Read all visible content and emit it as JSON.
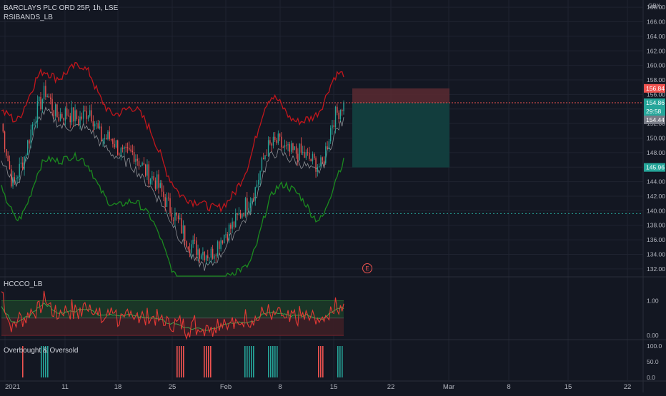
{
  "header": {
    "symbol_line": "BARCLAYS PLC ORD 25P, 1h, LSE",
    "indicator_1": "RSIBANDS_LB",
    "currency": "GBX"
  },
  "panels": {
    "pane2_title": "HCCCO_LB",
    "pane3_title": "Overbought & Oversold",
    "earnings_marker": "E"
  },
  "colors": {
    "background": "#131722",
    "grid": "#1f2330",
    "candle_up": "#26a69a",
    "candle_down": "#ef5350",
    "upper_band": "#c2161c",
    "lower_band": "#1b8a1f",
    "mid_line": "#8d8f94",
    "stop_zone": "#5a2a31",
    "target_zone": "#123f3f"
  },
  "price_axis": {
    "ticks": [
      "168.00",
      "166.00",
      "164.00",
      "162.00",
      "160.00",
      "158.00",
      "156.00",
      "154.00",
      "152.00",
      "150.00",
      "148.00",
      "146.00",
      "144.00",
      "142.00",
      "140.00",
      "138.00",
      "136.00",
      "134.00",
      "132.00"
    ],
    "labels": {
      "stop": "156.84",
      "last": "154.86",
      "countdown": "29:58",
      "prev": "154.44",
      "target": "145.96"
    }
  },
  "pane2_axis": [
    "1.00",
    "0.00"
  ],
  "pane3_axis": [
    "100.0",
    "50.0",
    "0.0"
  ],
  "time_axis": [
    "2021",
    "11",
    "18",
    "25",
    "Feb",
    "8",
    "15",
    "22",
    "Mar",
    "8",
    "15",
    "22"
  ],
  "chart_data": {
    "type": "candlestick",
    "bar_interval": "1h",
    "ylim": [
      131,
      169
    ],
    "position": {
      "entry": 154.86,
      "stop": 156.84,
      "target": 145.96
    },
    "reference_line": 139.6,
    "close_approx": [
      {
        "x": "2021-01-04",
        "y": 152.0
      },
      {
        "x": "2021-01-05",
        "y": 143.5
      },
      {
        "x": "2021-01-06",
        "y": 147.0
      },
      {
        "x": "2021-01-07",
        "y": 153.0
      },
      {
        "x": "2021-01-08",
        "y": 156.5
      },
      {
        "x": "2021-01-11",
        "y": 153.0
      },
      {
        "x": "2021-01-12",
        "y": 153.5
      },
      {
        "x": "2021-01-13",
        "y": 152.5
      },
      {
        "x": "2021-01-14",
        "y": 154.0
      },
      {
        "x": "2021-01-15",
        "y": 150.0
      },
      {
        "x": "2021-01-18",
        "y": 150.0
      },
      {
        "x": "2021-01-19",
        "y": 147.5
      },
      {
        "x": "2021-01-20",
        "y": 148.0
      },
      {
        "x": "2021-01-21",
        "y": 145.5
      },
      {
        "x": "2021-01-22",
        "y": 144.0
      },
      {
        "x": "2021-01-25",
        "y": 141.0
      },
      {
        "x": "2021-01-26",
        "y": 138.5
      },
      {
        "x": "2021-01-27",
        "y": 135.5
      },
      {
        "x": "2021-01-28",
        "y": 134.5
      },
      {
        "x": "2021-01-29",
        "y": 134.0
      },
      {
        "x": "2021-02-01",
        "y": 136.5
      },
      {
        "x": "2021-02-02",
        "y": 138.0
      },
      {
        "x": "2021-02-03",
        "y": 140.5
      },
      {
        "x": "2021-02-04",
        "y": 143.0
      },
      {
        "x": "2021-02-05",
        "y": 148.5
      },
      {
        "x": "2021-02-08",
        "y": 149.5
      },
      {
        "x": "2021-02-09",
        "y": 148.0
      },
      {
        "x": "2021-02-10",
        "y": 148.0
      },
      {
        "x": "2021-02-11",
        "y": 147.0
      },
      {
        "x": "2021-02-12",
        "y": 146.0
      },
      {
        "x": "2021-02-15",
        "y": 152.5
      },
      {
        "x": "2021-02-16",
        "y": 154.86
      }
    ]
  }
}
